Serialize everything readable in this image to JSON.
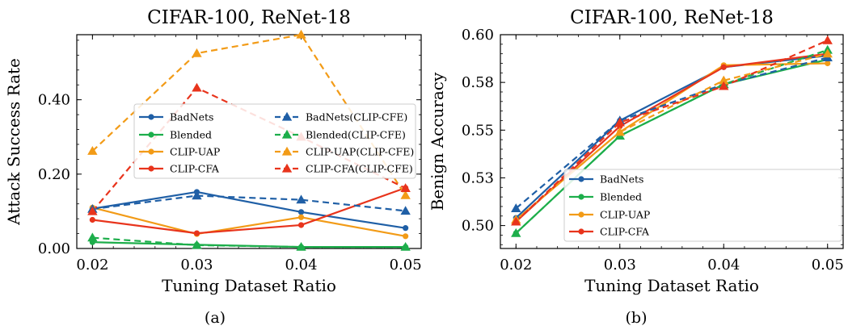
{
  "chart_data": [
    {
      "type": "line",
      "panel": "(a)",
      "title": "CIFAR-100, ReNet-18",
      "xlabel": "Tuning Dataset Ratio",
      "ylabel": "Attack Success Rate",
      "x": [
        0.02,
        0.03,
        0.04,
        0.05
      ],
      "x_tick_labels": [
        "0.02",
        "0.03",
        "0.04",
        "0.05"
      ],
      "y_ticks": [
        0.0,
        0.2,
        0.4
      ],
      "y_tick_labels": [
        "0.00",
        "0.20",
        "0.40"
      ],
      "xlim": [
        0.0185,
        0.0515
      ],
      "ylim": [
        0.0,
        0.575
      ],
      "legend_position": "right",
      "series": [
        {
          "name": "BadNets",
          "color": "#1f5fa6",
          "style": "solid",
          "marker": "circle",
          "values": [
            0.107,
            0.152,
            0.098,
            0.055
          ]
        },
        {
          "name": "Blended",
          "color": "#1dae4b",
          "style": "solid",
          "marker": "circle",
          "values": [
            0.017,
            0.01,
            0.004,
            0.004
          ]
        },
        {
          "name": "CLIP-UAP",
          "color": "#f29b17",
          "style": "solid",
          "marker": "circle",
          "values": [
            0.11,
            0.039,
            0.084,
            0.033
          ]
        },
        {
          "name": "CLIP-CFA",
          "color": "#e8341c",
          "style": "solid",
          "marker": "circle",
          "values": [
            0.077,
            0.041,
            0.063,
            0.163
          ]
        },
        {
          "name": "BadNets(CLIP-CFE)",
          "color": "#1f5fa6",
          "style": "dashed",
          "marker": "triangle",
          "values": [
            0.106,
            0.142,
            0.131,
            0.101
          ]
        },
        {
          "name": "Blended(CLIP-CFE)",
          "color": "#1dae4b",
          "style": "dashed",
          "marker": "triangle",
          "values": [
            0.029,
            0.009,
            0.004,
            0.004
          ]
        },
        {
          "name": "CLIP-UAP(CLIP-CFE)",
          "color": "#f29b17",
          "style": "dashed",
          "marker": "triangle",
          "values": [
            0.262,
            0.525,
            0.575,
            0.143
          ]
        },
        {
          "name": "CLIP-CFA(CLIP-CFE)",
          "color": "#e8341c",
          "style": "dashed",
          "marker": "triangle",
          "values": [
            0.1,
            0.432,
            0.3,
            0.162
          ]
        }
      ]
    },
    {
      "type": "line",
      "panel": "(b)",
      "title": "CIFAR-100, ReNet-18",
      "xlabel": "Tuning Dataset Ratio",
      "ylabel": "Benign Accuracy",
      "x": [
        0.02,
        0.03,
        0.04,
        0.05
      ],
      "x_tick_labels": [
        "0.02",
        "0.03",
        "0.04",
        "0.05"
      ],
      "y_ticks": [
        0.5,
        0.525,
        0.55,
        0.575,
        0.6
      ],
      "y_tick_labels": [
        "0.50",
        "0.53",
        "0.55",
        "0.58",
        "0.60"
      ],
      "xlim": [
        0.0185,
        0.0515
      ],
      "ylim": [
        0.488,
        0.6
      ],
      "legend_position": "lower right",
      "series": [
        {
          "name": "BadNets",
          "color": "#1f5fa6",
          "style": "solid",
          "marker": "circle",
          "values": [
            0.504,
            0.555,
            0.583,
            0.589
          ]
        },
        {
          "name": "Blended",
          "color": "#1dae4b",
          "style": "solid",
          "marker": "circle",
          "values": [
            0.496,
            0.547,
            0.574,
            0.587
          ]
        },
        {
          "name": "CLIP-UAP",
          "color": "#f29b17",
          "style": "solid",
          "marker": "circle",
          "values": [
            0.503,
            0.549,
            0.584,
            0.585
          ]
        },
        {
          "name": "CLIP-CFA",
          "color": "#e8341c",
          "style": "solid",
          "marker": "circle",
          "values": [
            0.502,
            0.552,
            0.583,
            0.59
          ]
        },
        {
          "name": "BadNets(CLIP-CFE)",
          "color": "#1f5fa6",
          "style": "dashed",
          "marker": "triangle",
          "values": [
            0.509,
            0.555,
            0.574,
            0.588
          ]
        },
        {
          "name": "Blended(CLIP-CFE)",
          "color": "#1dae4b",
          "style": "dashed",
          "marker": "triangle",
          "values": [
            0.496,
            0.547,
            0.574,
            0.592
          ]
        },
        {
          "name": "CLIP-UAP(CLIP-CFE)",
          "color": "#f29b17",
          "style": "dashed",
          "marker": "triangle",
          "values": [
            0.503,
            0.549,
            0.576,
            0.59
          ]
        },
        {
          "name": "CLIP-CFA(CLIP-CFE)",
          "color": "#e8341c",
          "style": "dashed",
          "marker": "triangle",
          "values": [
            0.502,
            0.554,
            0.573,
            0.597
          ]
        }
      ]
    }
  ]
}
